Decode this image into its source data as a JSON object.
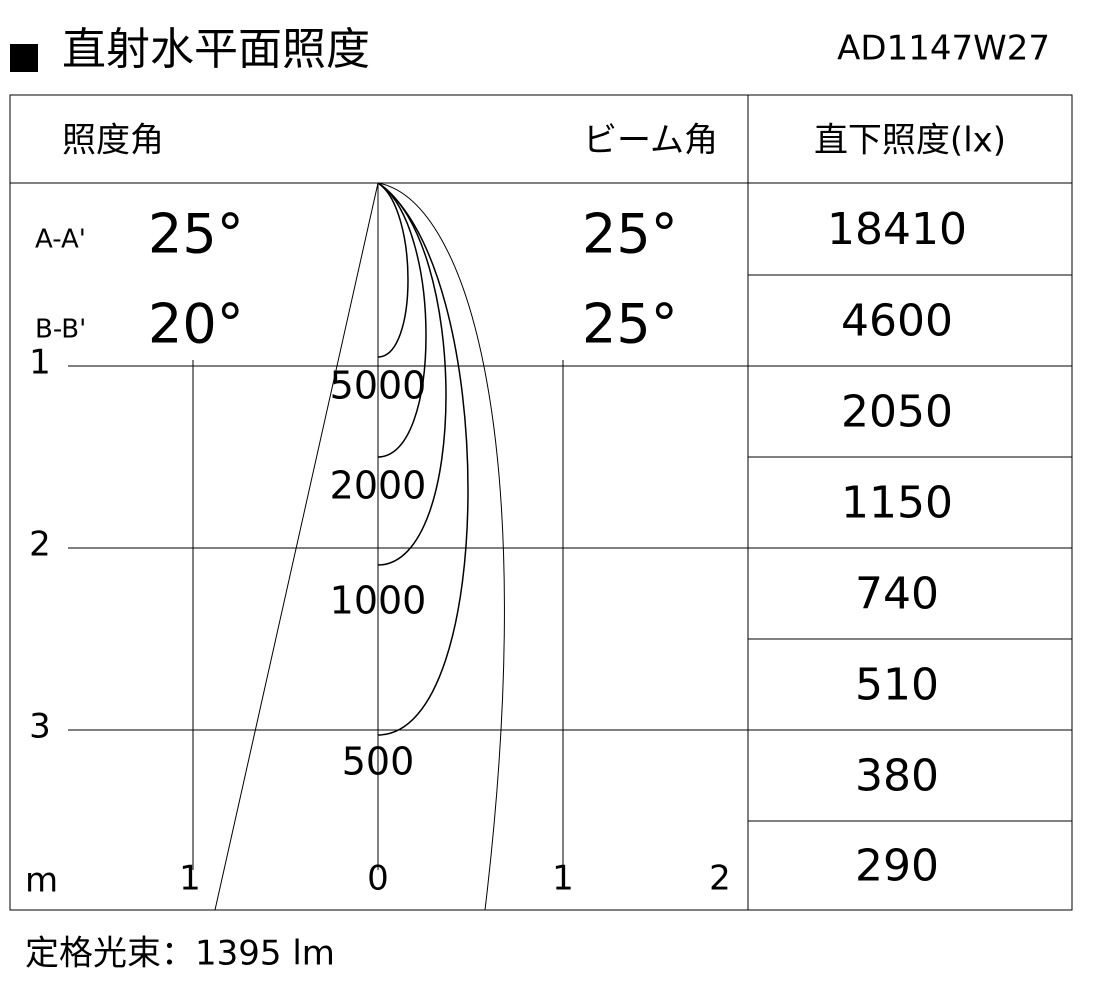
{
  "header": {
    "title": "直射水平面照度",
    "model": "AD1147W27"
  },
  "table": {
    "headers": [
      "照度角",
      "ビーム角",
      "直下照度(lx)"
    ],
    "angles": [
      {
        "label": "A-A'",
        "illuminance_angle": "25°",
        "beam_angle": "25°"
      },
      {
        "label": "B-B'",
        "illuminance_angle": "20°",
        "beam_angle": "25°"
      }
    ],
    "direct_illuminance": [
      18410,
      4600,
      2050,
      1150,
      740,
      510,
      380,
      290
    ]
  },
  "distance_axis": {
    "unit": "m",
    "vertical": [
      1,
      2,
      3
    ],
    "horizontal": [
      1,
      0,
      1,
      2
    ]
  },
  "contours": [
    5000,
    2000,
    1000,
    500
  ],
  "footer": "定格光束：1395 lm"
}
